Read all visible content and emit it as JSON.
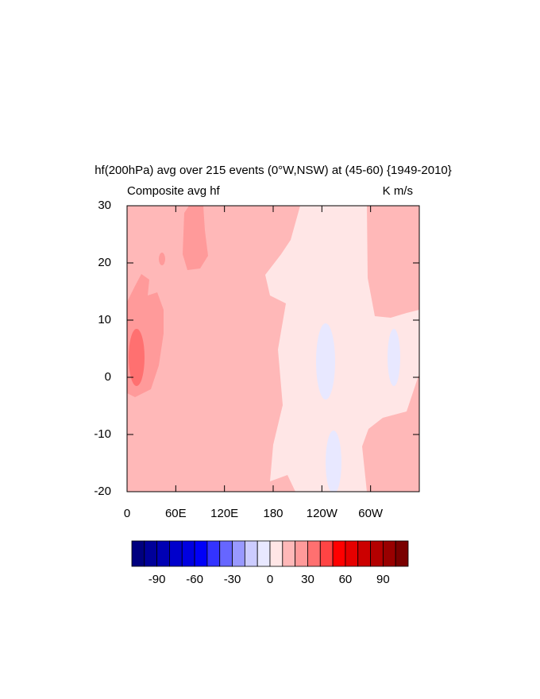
{
  "chart_data": {
    "type": "contour",
    "title": "hf(200hPa) avg over 215 events (0°W,NSW) at (45-60) {1949-2010}",
    "subtitle_left": "Composite avg hf",
    "subtitle_right": "K m/s",
    "xlim": [
      0,
      360
    ],
    "xticks": [
      0,
      {
        "value": 60,
        "label": "60E"
      },
      {
        "value": 120,
        "label": "120E"
      },
      180,
      {
        "value": 240,
        "label": "120W"
      },
      {
        "value": 300,
        "label": "60W"
      }
    ],
    "ylim": [
      -20,
      30
    ],
    "yticks": [
      -20,
      -10,
      0,
      10,
      20,
      30
    ],
    "colorbar": {
      "levels": [
        -100,
        -90,
        -80,
        -70,
        -60,
        -50,
        -40,
        -30,
        -20,
        -10,
        0,
        10,
        20,
        30,
        40,
        50,
        60,
        70,
        80,
        90,
        100
      ],
      "labels": [
        -90,
        -60,
        -30,
        0,
        30,
        60,
        90
      ],
      "colors": [
        "#00007f",
        "#00009a",
        "#0000b4",
        "#0000cc",
        "#0000e0",
        "#0000f8",
        "#3333ff",
        "#6666ff",
        "#9999ff",
        "#ccccff",
        "#e8e8ff",
        "#ffe6e6",
        "#ffb8b8",
        "#ff9a9a",
        "#ff7070",
        "#ff4444",
        "#ff0000",
        "#e60000",
        "#cc0000",
        "#b30000",
        "#990000",
        "#7a0000"
      ]
    }
  }
}
